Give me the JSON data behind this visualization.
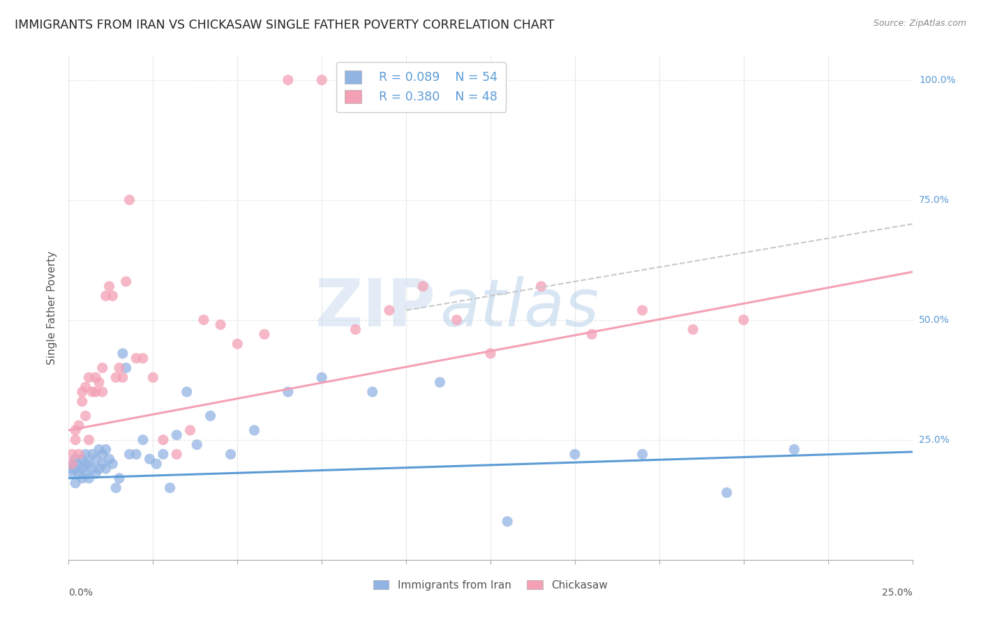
{
  "title": "IMMIGRANTS FROM IRAN VS CHICKASAW SINGLE FATHER POVERTY CORRELATION CHART",
  "source": "Source: ZipAtlas.com",
  "ylabel": "Single Father Poverty",
  "xlim": [
    0.0,
    0.25
  ],
  "ylim": [
    0.0,
    1.05
  ],
  "legend1_R": "0.089",
  "legend1_N": "54",
  "legend2_R": "0.380",
  "legend2_N": "48",
  "color_blue": "#92b4e3",
  "color_pink": "#f4a0b5",
  "trend_blue_color": "#5b9bd5",
  "trend_pink_color": "#f4a0b5",
  "trend_gray_color": "#c8c8c8",
  "blue_scatter_x": [
    0.001,
    0.001,
    0.001,
    0.002,
    0.002,
    0.002,
    0.003,
    0.003,
    0.004,
    0.004,
    0.004,
    0.005,
    0.005,
    0.005,
    0.006,
    0.006,
    0.007,
    0.007,
    0.008,
    0.008,
    0.009,
    0.009,
    0.01,
    0.01,
    0.011,
    0.011,
    0.012,
    0.013,
    0.014,
    0.015,
    0.016,
    0.017,
    0.018,
    0.02,
    0.022,
    0.024,
    0.026,
    0.028,
    0.03,
    0.032,
    0.035,
    0.038,
    0.042,
    0.048,
    0.055,
    0.065,
    0.075,
    0.09,
    0.11,
    0.13,
    0.15,
    0.17,
    0.195,
    0.215
  ],
  "blue_scatter_y": [
    0.18,
    0.19,
    0.2,
    0.16,
    0.19,
    0.21,
    0.18,
    0.2,
    0.17,
    0.19,
    0.21,
    0.18,
    0.2,
    0.22,
    0.17,
    0.2,
    0.19,
    0.22,
    0.18,
    0.21,
    0.19,
    0.23,
    0.2,
    0.22,
    0.19,
    0.23,
    0.21,
    0.2,
    0.15,
    0.17,
    0.43,
    0.4,
    0.22,
    0.22,
    0.25,
    0.21,
    0.2,
    0.22,
    0.15,
    0.26,
    0.35,
    0.24,
    0.3,
    0.22,
    0.27,
    0.35,
    0.38,
    0.35,
    0.37,
    0.08,
    0.22,
    0.22,
    0.14,
    0.23
  ],
  "pink_scatter_x": [
    0.001,
    0.001,
    0.002,
    0.002,
    0.003,
    0.003,
    0.004,
    0.004,
    0.005,
    0.005,
    0.006,
    0.006,
    0.007,
    0.008,
    0.008,
    0.009,
    0.01,
    0.01,
    0.011,
    0.012,
    0.013,
    0.014,
    0.015,
    0.016,
    0.017,
    0.018,
    0.02,
    0.022,
    0.025,
    0.028,
    0.032,
    0.036,
    0.04,
    0.045,
    0.05,
    0.058,
    0.065,
    0.075,
    0.085,
    0.095,
    0.105,
    0.115,
    0.125,
    0.14,
    0.155,
    0.17,
    0.185,
    0.2
  ],
  "pink_scatter_y": [
    0.2,
    0.22,
    0.25,
    0.27,
    0.28,
    0.22,
    0.33,
    0.35,
    0.3,
    0.36,
    0.38,
    0.25,
    0.35,
    0.35,
    0.38,
    0.37,
    0.35,
    0.4,
    0.55,
    0.57,
    0.55,
    0.38,
    0.4,
    0.38,
    0.58,
    0.75,
    0.42,
    0.42,
    0.38,
    0.25,
    0.22,
    0.27,
    0.5,
    0.49,
    0.45,
    0.47,
    1.0,
    1.0,
    0.48,
    0.52,
    0.57,
    0.5,
    0.43,
    0.57,
    0.47,
    0.52,
    0.48,
    0.5
  ],
  "blue_trend_x0": 0.0,
  "blue_trend_x1": 0.25,
  "blue_trend_y0": 0.17,
  "blue_trend_y1": 0.225,
  "pink_trend_x0": 0.0,
  "pink_trend_x1": 0.25,
  "pink_trend_y0": 0.27,
  "pink_trend_y1": 0.6,
  "gray_trend_x0": 0.1,
  "gray_trend_x1": 0.25,
  "gray_trend_y0": 0.52,
  "gray_trend_y1": 0.7,
  "watermark_text": "ZIPatlas",
  "background_color": "#ffffff",
  "grid_color": "#e8e8e8",
  "yticks": [
    0.0,
    0.25,
    0.5,
    0.75,
    1.0
  ],
  "ytick_right_labels": [
    "",
    "25.0%",
    "50.0%",
    "75.0%",
    "100.0%"
  ],
  "right_label_color": "#5b9bd5"
}
